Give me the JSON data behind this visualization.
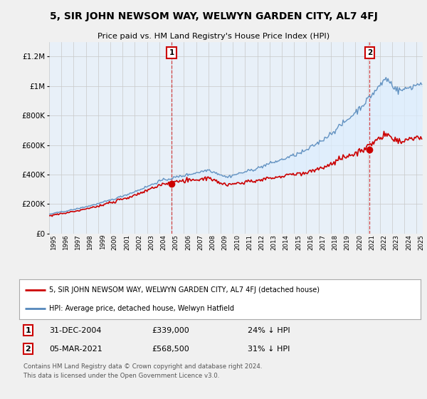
{
  "title": "5, SIR JOHN NEWSOM WAY, WELWYN GARDEN CITY, AL7 4FJ",
  "subtitle": "Price paid vs. HM Land Registry's House Price Index (HPI)",
  "sale1_date": "31-DEC-2004",
  "sale1_price": 339000,
  "sale1_label": "24% ↓ HPI",
  "sale2_date": "05-MAR-2021",
  "sale2_price": 568500,
  "sale2_label": "31% ↓ HPI",
  "sale1_x": 2004.99,
  "sale2_x": 2021.17,
  "legend_line1": "5, SIR JOHN NEWSOM WAY, WELWYN GARDEN CITY, AL7 4FJ (detached house)",
  "legend_line2": "HPI: Average price, detached house, Welwyn Hatfield",
  "footer1": "Contains HM Land Registry data © Crown copyright and database right 2024.",
  "footer2": "This data is licensed under the Open Government Licence v3.0.",
  "red_color": "#cc0000",
  "blue_color": "#5588bb",
  "fill_color": "#ddeeff",
  "background_color": "#f0f0f0",
  "plot_bg_color": "#e8f0f8",
  "ylim_min": 0,
  "ylim_max": 1300000,
  "xmin": 1995,
  "xmax": 2025.5,
  "yticks": [
    0,
    200000,
    400000,
    600000,
    800000,
    1000000,
    1200000
  ],
  "ylabels": [
    "£0",
    "£200K",
    "£400K",
    "£600K",
    "£800K",
    "£1M",
    "£1.2M"
  ]
}
